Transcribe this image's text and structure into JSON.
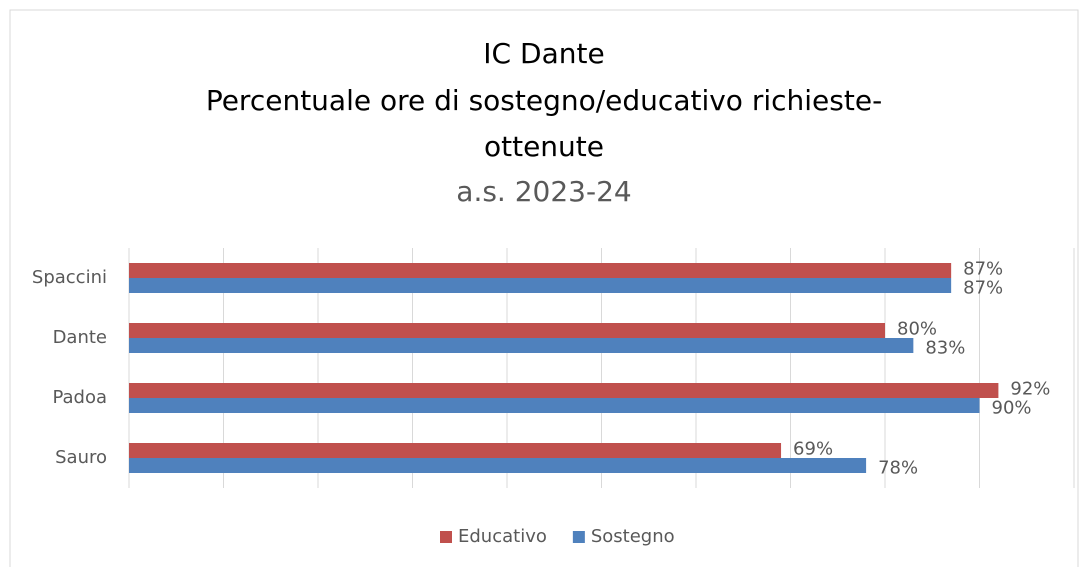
{
  "chart_data": {
    "type": "hbar",
    "title": [
      "IC Dante",
      "Percentuale ore di sostegno/educativo richieste-",
      "ottenute"
    ],
    "subtitle": "a.s. 2023-24",
    "categories": [
      "Spaccini",
      "Dante",
      "Padoa",
      "Sauro"
    ],
    "series": [
      {
        "name": "Educativo",
        "color": "#c0504d",
        "values": [
          87,
          80,
          92,
          69
        ],
        "value_labels": [
          "87%",
          "80%",
          "92%",
          "69%"
        ]
      },
      {
        "name": "Sostegno",
        "color": "#4f81bd",
        "values": [
          87,
          83,
          90,
          78
        ],
        "value_labels": [
          "87%",
          "83%",
          "90%",
          "78%"
        ]
      }
    ],
    "xlim": [
      0,
      100
    ],
    "xticks": [
      0,
      10,
      20,
      30,
      40,
      50,
      60,
      70,
      80,
      90,
      100
    ],
    "grid": true,
    "legend": "bottom"
  }
}
